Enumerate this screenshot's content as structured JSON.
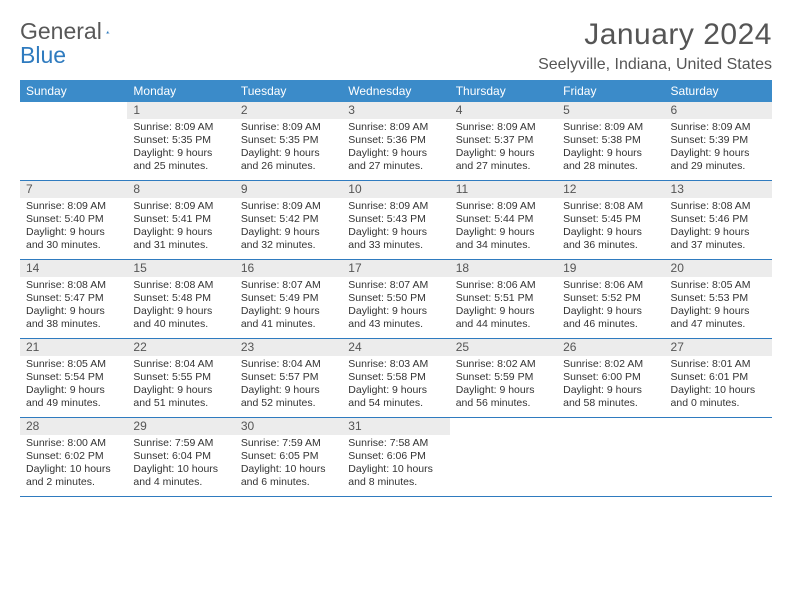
{
  "brand": {
    "word1": "General",
    "word2": "Blue"
  },
  "title": "January 2024",
  "location": "Seelyville, Indiana, United States",
  "colors": {
    "header_bg": "#3b8bc9",
    "rule": "#2f7bbf",
    "daynum_bg": "#ececec",
    "text": "#333333",
    "muted": "#555555"
  },
  "days_of_week": [
    "Sunday",
    "Monday",
    "Tuesday",
    "Wednesday",
    "Thursday",
    "Friday",
    "Saturday"
  ],
  "weeks": [
    [
      {
        "n": "",
        "sunrise": "",
        "sunset": "",
        "daylight": ""
      },
      {
        "n": "1",
        "sunrise": "Sunrise: 8:09 AM",
        "sunset": "Sunset: 5:35 PM",
        "daylight": "Daylight: 9 hours and 25 minutes."
      },
      {
        "n": "2",
        "sunrise": "Sunrise: 8:09 AM",
        "sunset": "Sunset: 5:35 PM",
        "daylight": "Daylight: 9 hours and 26 minutes."
      },
      {
        "n": "3",
        "sunrise": "Sunrise: 8:09 AM",
        "sunset": "Sunset: 5:36 PM",
        "daylight": "Daylight: 9 hours and 27 minutes."
      },
      {
        "n": "4",
        "sunrise": "Sunrise: 8:09 AM",
        "sunset": "Sunset: 5:37 PM",
        "daylight": "Daylight: 9 hours and 27 minutes."
      },
      {
        "n": "5",
        "sunrise": "Sunrise: 8:09 AM",
        "sunset": "Sunset: 5:38 PM",
        "daylight": "Daylight: 9 hours and 28 minutes."
      },
      {
        "n": "6",
        "sunrise": "Sunrise: 8:09 AM",
        "sunset": "Sunset: 5:39 PM",
        "daylight": "Daylight: 9 hours and 29 minutes."
      }
    ],
    [
      {
        "n": "7",
        "sunrise": "Sunrise: 8:09 AM",
        "sunset": "Sunset: 5:40 PM",
        "daylight": "Daylight: 9 hours and 30 minutes."
      },
      {
        "n": "8",
        "sunrise": "Sunrise: 8:09 AM",
        "sunset": "Sunset: 5:41 PM",
        "daylight": "Daylight: 9 hours and 31 minutes."
      },
      {
        "n": "9",
        "sunrise": "Sunrise: 8:09 AM",
        "sunset": "Sunset: 5:42 PM",
        "daylight": "Daylight: 9 hours and 32 minutes."
      },
      {
        "n": "10",
        "sunrise": "Sunrise: 8:09 AM",
        "sunset": "Sunset: 5:43 PM",
        "daylight": "Daylight: 9 hours and 33 minutes."
      },
      {
        "n": "11",
        "sunrise": "Sunrise: 8:09 AM",
        "sunset": "Sunset: 5:44 PM",
        "daylight": "Daylight: 9 hours and 34 minutes."
      },
      {
        "n": "12",
        "sunrise": "Sunrise: 8:08 AM",
        "sunset": "Sunset: 5:45 PM",
        "daylight": "Daylight: 9 hours and 36 minutes."
      },
      {
        "n": "13",
        "sunrise": "Sunrise: 8:08 AM",
        "sunset": "Sunset: 5:46 PM",
        "daylight": "Daylight: 9 hours and 37 minutes."
      }
    ],
    [
      {
        "n": "14",
        "sunrise": "Sunrise: 8:08 AM",
        "sunset": "Sunset: 5:47 PM",
        "daylight": "Daylight: 9 hours and 38 minutes."
      },
      {
        "n": "15",
        "sunrise": "Sunrise: 8:08 AM",
        "sunset": "Sunset: 5:48 PM",
        "daylight": "Daylight: 9 hours and 40 minutes."
      },
      {
        "n": "16",
        "sunrise": "Sunrise: 8:07 AM",
        "sunset": "Sunset: 5:49 PM",
        "daylight": "Daylight: 9 hours and 41 minutes."
      },
      {
        "n": "17",
        "sunrise": "Sunrise: 8:07 AM",
        "sunset": "Sunset: 5:50 PM",
        "daylight": "Daylight: 9 hours and 43 minutes."
      },
      {
        "n": "18",
        "sunrise": "Sunrise: 8:06 AM",
        "sunset": "Sunset: 5:51 PM",
        "daylight": "Daylight: 9 hours and 44 minutes."
      },
      {
        "n": "19",
        "sunrise": "Sunrise: 8:06 AM",
        "sunset": "Sunset: 5:52 PM",
        "daylight": "Daylight: 9 hours and 46 minutes."
      },
      {
        "n": "20",
        "sunrise": "Sunrise: 8:05 AM",
        "sunset": "Sunset: 5:53 PM",
        "daylight": "Daylight: 9 hours and 47 minutes."
      }
    ],
    [
      {
        "n": "21",
        "sunrise": "Sunrise: 8:05 AM",
        "sunset": "Sunset: 5:54 PM",
        "daylight": "Daylight: 9 hours and 49 minutes."
      },
      {
        "n": "22",
        "sunrise": "Sunrise: 8:04 AM",
        "sunset": "Sunset: 5:55 PM",
        "daylight": "Daylight: 9 hours and 51 minutes."
      },
      {
        "n": "23",
        "sunrise": "Sunrise: 8:04 AM",
        "sunset": "Sunset: 5:57 PM",
        "daylight": "Daylight: 9 hours and 52 minutes."
      },
      {
        "n": "24",
        "sunrise": "Sunrise: 8:03 AM",
        "sunset": "Sunset: 5:58 PM",
        "daylight": "Daylight: 9 hours and 54 minutes."
      },
      {
        "n": "25",
        "sunrise": "Sunrise: 8:02 AM",
        "sunset": "Sunset: 5:59 PM",
        "daylight": "Daylight: 9 hours and 56 minutes."
      },
      {
        "n": "26",
        "sunrise": "Sunrise: 8:02 AM",
        "sunset": "Sunset: 6:00 PM",
        "daylight": "Daylight: 9 hours and 58 minutes."
      },
      {
        "n": "27",
        "sunrise": "Sunrise: 8:01 AM",
        "sunset": "Sunset: 6:01 PM",
        "daylight": "Daylight: 10 hours and 0 minutes."
      }
    ],
    [
      {
        "n": "28",
        "sunrise": "Sunrise: 8:00 AM",
        "sunset": "Sunset: 6:02 PM",
        "daylight": "Daylight: 10 hours and 2 minutes."
      },
      {
        "n": "29",
        "sunrise": "Sunrise: 7:59 AM",
        "sunset": "Sunset: 6:04 PM",
        "daylight": "Daylight: 10 hours and 4 minutes."
      },
      {
        "n": "30",
        "sunrise": "Sunrise: 7:59 AM",
        "sunset": "Sunset: 6:05 PM",
        "daylight": "Daylight: 10 hours and 6 minutes."
      },
      {
        "n": "31",
        "sunrise": "Sunrise: 7:58 AM",
        "sunset": "Sunset: 6:06 PM",
        "daylight": "Daylight: 10 hours and 8 minutes."
      },
      {
        "n": "",
        "sunrise": "",
        "sunset": "",
        "daylight": ""
      },
      {
        "n": "",
        "sunrise": "",
        "sunset": "",
        "daylight": ""
      },
      {
        "n": "",
        "sunrise": "",
        "sunset": "",
        "daylight": ""
      }
    ]
  ]
}
